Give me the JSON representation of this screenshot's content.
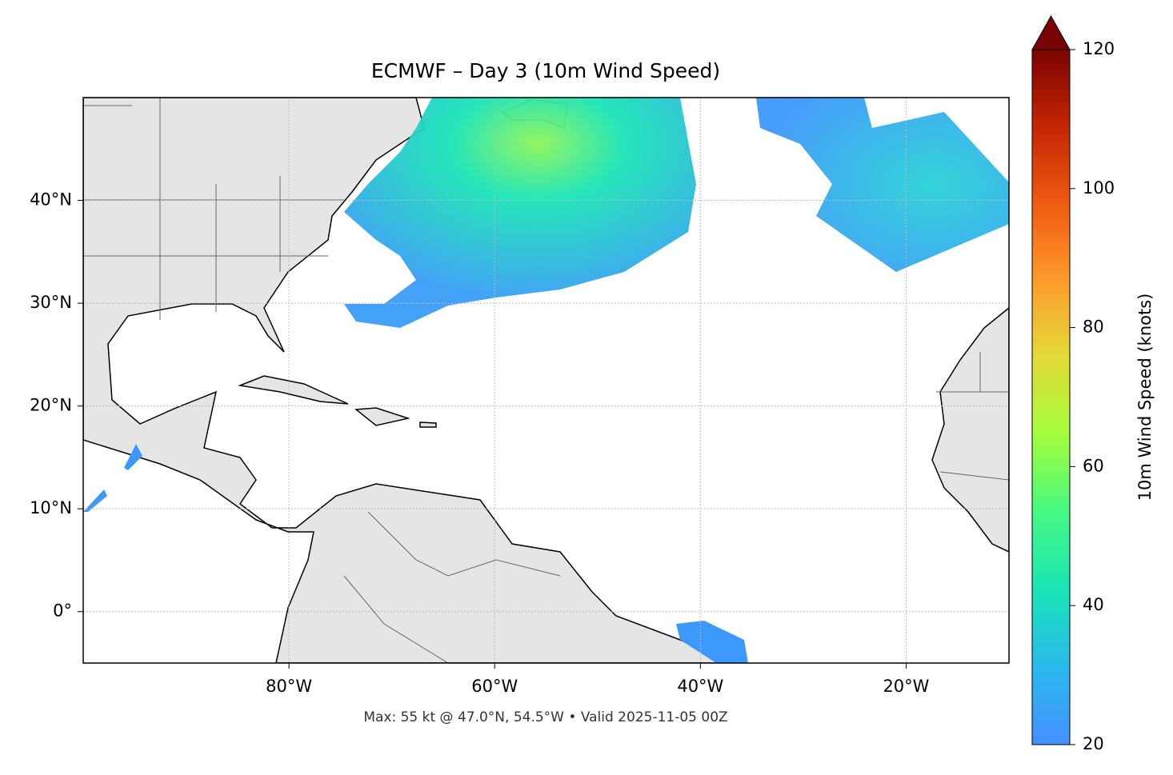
{
  "chart_data": {
    "type": "map",
    "title": "ECMWF – Day 3 (10m Wind Speed)",
    "annotation": "Max: 55 kt @ 47.0°N, 54.5°W • Valid 2025-11-05 00Z",
    "xlim": [
      -100,
      -10
    ],
    "ylim": [
      -5,
      50
    ],
    "xticks": [
      {
        "value": -80,
        "label": "80°W"
      },
      {
        "value": -60,
        "label": "60°W"
      },
      {
        "value": -40,
        "label": "40°W"
      },
      {
        "value": -20,
        "label": "20°W"
      }
    ],
    "yticks": [
      {
        "value": 0,
        "label": "0°"
      },
      {
        "value": 10,
        "label": "10°N"
      },
      {
        "value": 20,
        "label": "20°N"
      },
      {
        "value": 30,
        "label": "30°N"
      },
      {
        "value": 40,
        "label": "40°N"
      }
    ],
    "grid": true,
    "colorbar": {
      "label": "10m Wind Speed (knots)",
      "clim": [
        20,
        120
      ],
      "ticks": [
        20,
        40,
        60,
        80,
        100,
        120
      ],
      "colors": [
        "#4490fe",
        "#2ab9ed",
        "#1ae4b6",
        "#46f884",
        "#a3fd3d",
        "#e2dc38",
        "#fe9b2d",
        "#f05b12",
        "#c42503",
        "#7a0403"
      ]
    }
  }
}
